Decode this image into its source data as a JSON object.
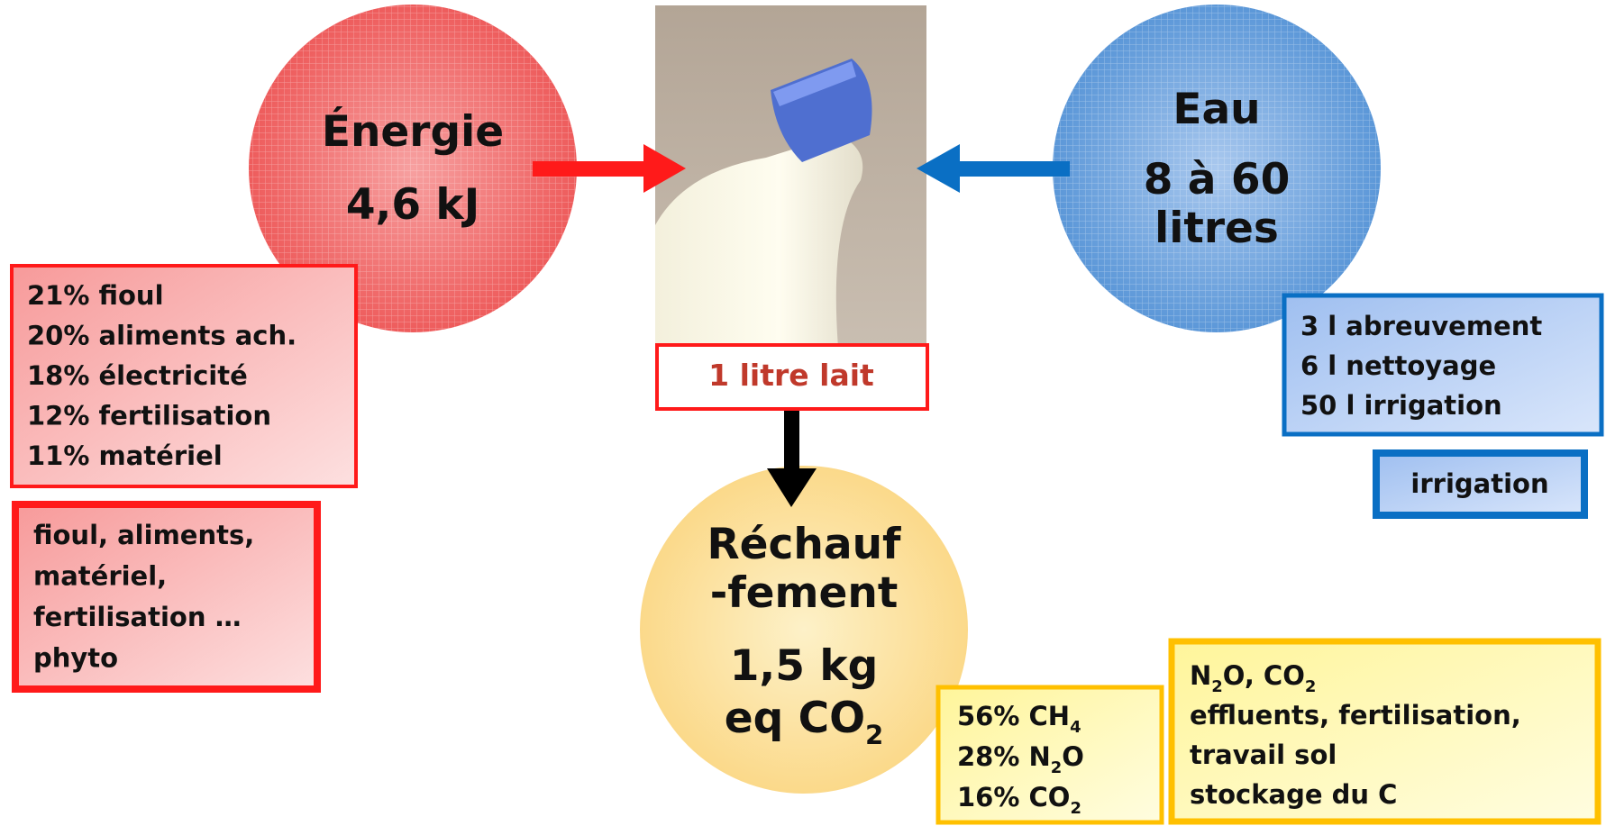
{
  "energy": {
    "title": "Énergie",
    "value": "4,6 kJ",
    "breakdown": [
      "21% fioul",
      "20% aliments ach.",
      "18% électricité",
      "12% fertilisation",
      "11% matériel"
    ],
    "sources": [
      "fioul, aliments,",
      "matériel,",
      "fertilisation …",
      "phyto"
    ]
  },
  "product": {
    "label": "1 litre lait"
  },
  "water": {
    "title": "Eau",
    "value_lines": [
      "8 à 60",
      "litres"
    ],
    "breakdown": [
      "3 l abreuvement",
      "6 l nettoyage",
      "50 l irrigation"
    ],
    "sources": [
      "irrigation"
    ]
  },
  "warming": {
    "title_lines": [
      "Réchauf",
      "-fement"
    ],
    "value_lines": [
      [
        "1,5 kg"
      ],
      [
        "eq CO",
        "2"
      ]
    ],
    "breakdown": [
      [
        "56% CH",
        "4"
      ],
      [
        "28% N",
        "2",
        "O"
      ],
      [
        "16% CO",
        "2"
      ]
    ],
    "sources": [
      [
        "N",
        "2",
        "O, CO",
        "2"
      ],
      [
        "effluents, fertilisation,"
      ],
      [
        "travail sol"
      ],
      [
        "stockage du C"
      ]
    ]
  }
}
